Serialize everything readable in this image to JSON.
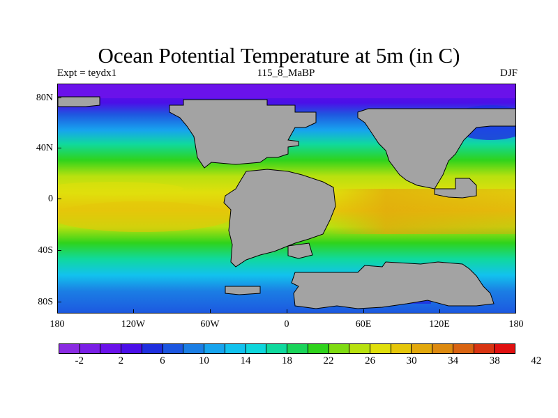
{
  "title": "Ocean Potential Temperature at 5m (in C)",
  "experiment_label": "Expt = teydx1",
  "center_label": "115_8_MaBP",
  "season_label": "DJF",
  "map": {
    "longitude_labels": [
      "180",
      "120W",
      "60W",
      "0",
      "60E",
      "120E",
      "180"
    ],
    "latitude_labels": [
      "80N",
      "40N",
      "0",
      "40S",
      "80S"
    ],
    "land_color": "#a3a3a3"
  },
  "colorbar": {
    "colors": [
      "#8a2be2",
      "#7a1fe6",
      "#6a12ea",
      "#4b0fe8",
      "#1f2fde",
      "#1c56e0",
      "#1b7ee4",
      "#17a4ee",
      "#12c2ee",
      "#0fd6dc",
      "#10d99e",
      "#1ad45a",
      "#2fd31c",
      "#7fdb12",
      "#b8e10f",
      "#e0df0c",
      "#e5c60a",
      "#e2a80c",
      "#dd8a10",
      "#d96412",
      "#d83412",
      "#e01010"
    ],
    "labels": [
      "-2",
      "2",
      "6",
      "10",
      "14",
      "18",
      "22",
      "26",
      "30",
      "34",
      "38",
      "42"
    ]
  }
}
